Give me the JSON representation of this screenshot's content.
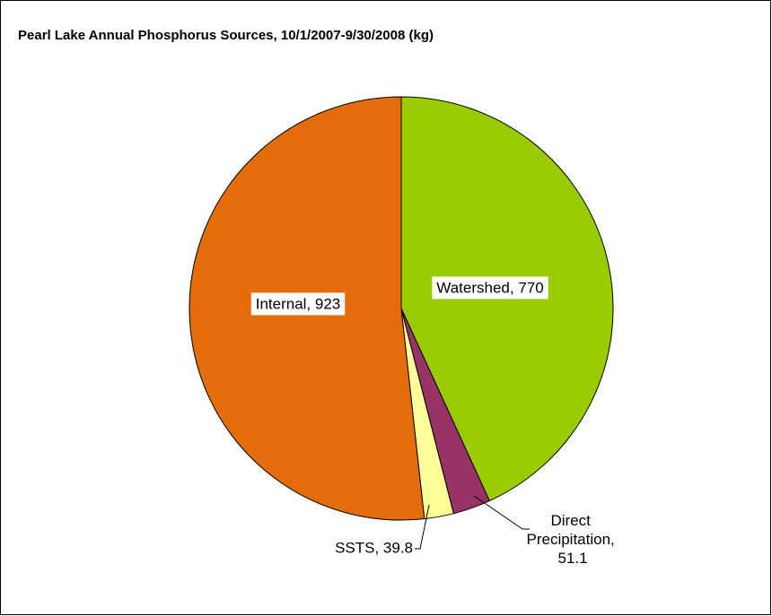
{
  "chart_data": {
    "type": "pie",
    "title": "Pearl Lake Annual Phosphorus Sources, 10/1/2007-9/30/2008 (kg)",
    "values": [
      770,
      51.1,
      39.8,
      923
    ],
    "value_labels": [
      "Watershed, 770",
      "Direct Precipitation, 51.1",
      "SSTS, 39.8",
      "Internal, 923"
    ],
    "colors": [
      "#99cc00",
      "#993366",
      "#ffff99",
      "#e46c0a"
    ]
  }
}
